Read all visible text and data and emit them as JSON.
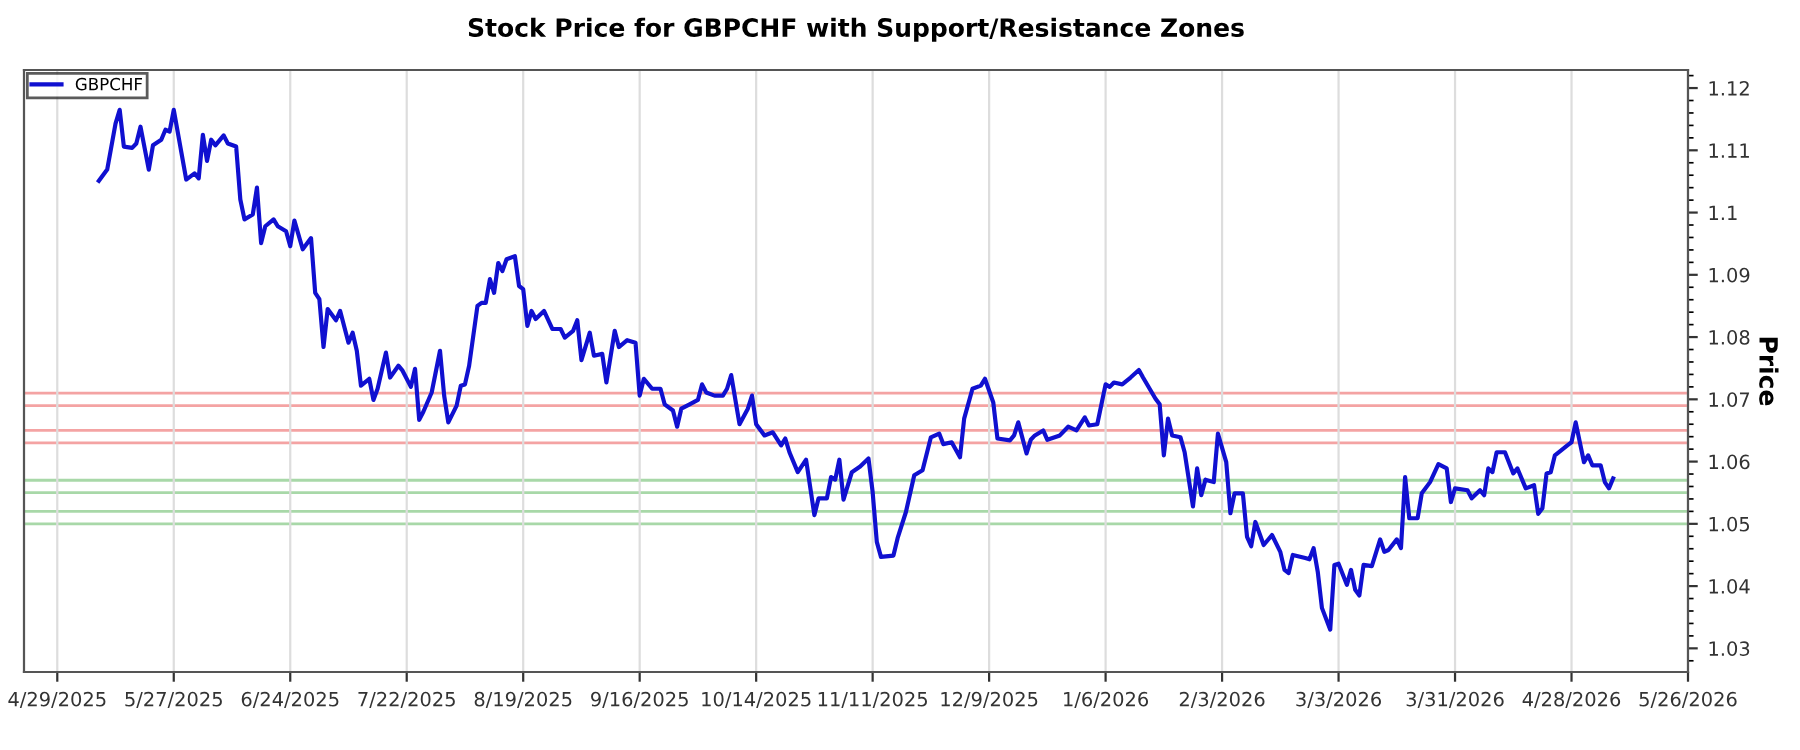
{
  "chart_data": {
    "type": "line",
    "title": "Stock Price for GBPCHF with Support/Resistance Zones",
    "ylabel": "Price",
    "x": [
      "2025-05-09",
      "2025-05-11",
      "2025-05-13",
      "2025-05-14",
      "2025-05-15",
      "2025-05-17",
      "2025-05-18",
      "2025-05-19",
      "2025-05-21",
      "2025-05-22",
      "2025-05-24",
      "2025-05-25",
      "2025-05-26",
      "2025-05-27",
      "2025-05-30",
      "2025-06-01",
      "2025-06-02",
      "2025-06-03",
      "2025-06-04",
      "2025-06-05",
      "2025-06-06",
      "2025-06-08",
      "2025-06-09",
      "2025-06-11",
      "2025-06-12",
      "2025-06-13",
      "2025-06-15",
      "2025-06-16",
      "2025-06-17",
      "2025-06-18",
      "2025-06-20",
      "2025-06-21",
      "2025-06-23",
      "2025-06-24",
      "2025-06-25",
      "2025-06-27",
      "2025-06-29",
      "2025-06-30",
      "2025-07-01",
      "2025-07-02",
      "2025-07-03",
      "2025-07-05",
      "2025-07-06",
      "2025-07-08",
      "2025-07-09",
      "2025-07-10",
      "2025-07-11",
      "2025-07-13",
      "2025-07-14",
      "2025-07-15",
      "2025-07-17",
      "2025-07-18",
      "2025-07-20",
      "2025-07-21",
      "2025-07-23",
      "2025-07-24",
      "2025-07-25",
      "2025-07-26",
      "2025-07-28",
      "2025-07-30",
      "2025-07-31",
      "2025-08-01",
      "2025-08-03",
      "2025-08-04",
      "2025-08-05",
      "2025-08-06",
      "2025-08-08",
      "2025-08-09",
      "2025-08-10",
      "2025-08-11",
      "2025-08-12",
      "2025-08-13",
      "2025-08-14",
      "2025-08-15",
      "2025-08-17",
      "2025-08-18",
      "2025-08-19",
      "2025-08-20",
      "2025-08-21",
      "2025-08-22",
      "2025-08-24",
      "2025-08-26",
      "2025-08-28",
      "2025-08-29",
      "2025-08-31",
      "2025-09-01",
      "2025-09-02",
      "2025-09-04",
      "2025-09-05",
      "2025-09-07",
      "2025-09-08",
      "2025-09-10",
      "2025-09-11",
      "2025-09-13",
      "2025-09-15",
      "2025-09-16",
      "2025-09-17",
      "2025-09-19",
      "2025-09-21",
      "2025-09-22",
      "2025-09-24",
      "2025-09-25",
      "2025-09-26",
      "2025-09-28",
      "2025-09-30",
      "2025-10-01",
      "2025-10-02",
      "2025-10-04",
      "2025-10-06",
      "2025-10-07",
      "2025-10-08",
      "2025-10-10",
      "2025-10-12",
      "2025-10-13",
      "2025-10-14",
      "2025-10-16",
      "2025-10-18",
      "2025-10-20",
      "2025-10-21",
      "2025-10-22",
      "2025-10-24",
      "2025-10-26",
      "2025-10-28",
      "2025-10-29",
      "2025-10-31",
      "2025-11-01",
      "2025-11-02",
      "2025-11-03",
      "2025-11-04",
      "2025-11-06",
      "2025-11-08",
      "2025-11-10",
      "2025-11-11",
      "2025-11-12",
      "2025-11-13",
      "2025-11-16",
      "2025-11-17",
      "2025-11-19",
      "2025-11-21",
      "2025-11-23",
      "2025-11-25",
      "2025-11-27",
      "2025-11-28",
      "2025-11-30",
      "2025-12-02",
      "2025-12-03",
      "2025-12-05",
      "2025-12-07",
      "2025-12-08",
      "2025-12-10",
      "2025-12-11",
      "2025-12-14",
      "2025-12-15",
      "2025-12-16",
      "2025-12-18",
      "2025-12-19",
      "2025-12-20",
      "2025-12-22",
      "2025-12-23",
      "2025-12-26",
      "2025-12-28",
      "2025-12-30",
      "2026-01-01",
      "2026-01-02",
      "2026-01-04",
      "2026-01-06",
      "2026-01-07",
      "2026-01-08",
      "2026-01-10",
      "2026-01-12",
      "2026-01-14",
      "2026-01-15",
      "2026-01-18",
      "2026-01-19",
      "2026-01-20",
      "2026-01-21",
      "2026-01-22",
      "2026-01-24",
      "2026-01-25",
      "2026-01-27",
      "2026-01-28",
      "2026-01-29",
      "2026-01-30",
      "2026-02-01",
      "2026-02-02",
      "2026-02-04",
      "2026-02-05",
      "2026-02-06",
      "2026-02-08",
      "2026-02-09",
      "2026-02-10",
      "2026-02-11",
      "2026-02-13",
      "2026-02-15",
      "2026-02-17",
      "2026-02-18",
      "2026-02-19",
      "2026-02-20",
      "2026-02-23",
      "2026-02-24",
      "2026-02-25",
      "2026-02-26",
      "2026-02-27",
      "2026-03-01",
      "2026-03-02",
      "2026-03-03",
      "2026-03-05",
      "2026-03-06",
      "2026-03-07",
      "2026-03-08",
      "2026-03-09",
      "2026-03-11",
      "2026-03-13",
      "2026-03-14",
      "2026-03-15",
      "2026-03-17",
      "2026-03-18",
      "2026-03-19",
      "2026-03-20",
      "2026-03-22",
      "2026-03-23",
      "2026-03-25",
      "2026-03-27",
      "2026-03-29",
      "2026-03-30",
      "2026-03-31",
      "2026-04-03",
      "2026-04-04",
      "2026-04-06",
      "2026-04-07",
      "2026-04-08",
      "2026-04-09",
      "2026-04-10",
      "2026-04-12",
      "2026-04-14",
      "2026-04-15",
      "2026-04-17",
      "2026-04-19",
      "2026-04-20",
      "2026-04-21",
      "2026-04-22",
      "2026-04-23",
      "2026-04-24",
      "2026-04-27",
      "2026-04-28",
      "2026-04-29",
      "2026-05-01",
      "2026-05-02",
      "2026-05-03",
      "2026-05-05",
      "2026-05-06",
      "2026-05-07",
      "2026-05-08"
    ],
    "series": [
      {
        "name": "GBPCHF",
        "color": "#1010d0",
        "values": [
          1.1051,
          1.1069,
          1.1143,
          1.1165,
          1.1106,
          1.1104,
          1.1111,
          1.1138,
          1.1069,
          1.1108,
          1.1117,
          1.1133,
          1.113,
          1.1165,
          1.1053,
          1.1063,
          1.1055,
          1.1125,
          1.1083,
          1.1117,
          1.1108,
          1.1124,
          1.1111,
          1.1106,
          1.1021,
          1.0989,
          1.0997,
          1.104,
          1.0951,
          1.0978,
          1.0989,
          1.0978,
          1.097,
          1.0946,
          1.0987,
          1.0941,
          1.0959,
          1.0871,
          1.0861,
          1.0784,
          1.0845,
          1.0827,
          1.0842,
          1.0791,
          1.0807,
          1.0778,
          1.0722,
          1.0733,
          1.0699,
          1.0717,
          1.0775,
          1.0735,
          1.0754,
          1.0746,
          1.072,
          1.0749,
          1.0667,
          1.068,
          1.0711,
          1.0778,
          1.0706,
          1.0663,
          1.069,
          1.0722,
          1.0724,
          1.0754,
          1.085,
          1.0855,
          1.0855,
          1.0893,
          1.0871,
          1.0919,
          1.0906,
          1.0925,
          1.093,
          1.0882,
          1.0877,
          1.0818,
          1.0842,
          1.0829,
          1.0842,
          1.0813,
          1.0813,
          1.0799,
          1.081,
          1.0827,
          1.0763,
          1.0807,
          1.077,
          1.0773,
          1.0727,
          1.081,
          1.0784,
          1.0795,
          1.0791,
          1.0706,
          1.0733,
          1.0717,
          1.0717,
          1.0692,
          1.0682,
          1.0656,
          1.0685,
          1.0692,
          1.0699,
          1.0724,
          1.0711,
          1.0706,
          1.0706,
          1.0717,
          1.0739,
          1.066,
          1.0685,
          1.0706,
          1.066,
          1.0642,
          1.0647,
          1.0626,
          1.0637,
          1.0615,
          1.0583,
          1.0603,
          1.0514,
          1.0541,
          1.0541,
          1.0575,
          1.0571,
          1.0603,
          1.0539,
          1.0583,
          1.0592,
          1.0605,
          1.0551,
          1.0471,
          1.0447,
          1.0449,
          1.0477,
          1.0519,
          1.0578,
          1.0586,
          1.0639,
          1.0645,
          1.0628,
          1.0631,
          1.0607,
          1.0669,
          1.0717,
          1.0722,
          1.0733,
          1.0695,
          1.0637,
          1.0634,
          1.0642,
          1.0663,
          1.0613,
          1.0635,
          1.0642,
          1.065,
          1.0635,
          1.0642,
          1.0656,
          1.065,
          1.0671,
          1.0658,
          1.066,
          1.0724,
          1.072,
          1.0727,
          1.0724,
          1.0735,
          1.0747,
          1.0735,
          1.0701,
          1.0692,
          1.061,
          1.0669,
          1.0642,
          1.0639,
          1.0615,
          1.0528,
          1.0589,
          1.0546,
          1.0571,
          1.0567,
          1.0645,
          1.0599,
          1.0517,
          1.0549,
          1.0549,
          1.0479,
          1.0464,
          1.0503,
          1.0466,
          1.0482,
          1.0455,
          1.0426,
          1.0421,
          1.045,
          1.0445,
          1.0443,
          1.0461,
          1.0423,
          1.0365,
          1.033,
          1.0434,
          1.0436,
          1.0402,
          1.0426,
          1.0394,
          1.0385,
          1.0434,
          1.0432,
          1.0475,
          1.0455,
          1.0458,
          1.0475,
          1.0461,
          1.0575,
          1.0509,
          1.0509,
          1.0549,
          1.0567,
          1.0596,
          1.0589,
          1.0535,
          1.0557,
          1.0554,
          1.0541,
          1.0554,
          1.0546,
          1.0589,
          1.0583,
          1.0615,
          1.0615,
          1.0581,
          1.0589,
          1.0557,
          1.0562,
          1.0516,
          1.0525,
          1.0581,
          1.0583,
          1.061,
          1.0626,
          1.0631,
          1.0663,
          1.0599,
          1.061,
          1.0594,
          1.0594,
          1.0567,
          1.0557,
          1.0573
        ]
      }
    ],
    "ref_lines": [
      {
        "axis": "y",
        "value": 1.071,
        "color": "#f4a3a3"
      },
      {
        "axis": "y",
        "value": 1.069,
        "color": "#f4a3a3"
      },
      {
        "axis": "y",
        "value": 1.065,
        "color": "#f4a3a3"
      },
      {
        "axis": "y",
        "value": 1.063,
        "color": "#f4a3a3"
      },
      {
        "axis": "y",
        "value": 1.057,
        "color": "#a8d8a8"
      },
      {
        "axis": "y",
        "value": 1.055,
        "color": "#a8d8a8"
      },
      {
        "axis": "y",
        "value": 1.052,
        "color": "#a8d8a8"
      },
      {
        "axis": "y",
        "value": 1.05,
        "color": "#a8d8a8"
      }
    ],
    "xlim": [
      "2025-04-21",
      "2026-05-26"
    ],
    "xticks": [
      {
        "value": "2025-04-29",
        "label": "4/29/2025"
      },
      {
        "value": "2025-05-27",
        "label": "5/27/2025"
      },
      {
        "value": "2025-06-24",
        "label": "6/24/2025"
      },
      {
        "value": "2025-07-22",
        "label": "7/22/2025"
      },
      {
        "value": "2025-08-19",
        "label": "8/19/2025"
      },
      {
        "value": "2025-09-16",
        "label": "9/16/2025"
      },
      {
        "value": "2025-10-14",
        "label": "10/14/2025"
      },
      {
        "value": "2025-11-11",
        "label": "11/11/2025"
      },
      {
        "value": "2025-12-09",
        "label": "12/9/2025"
      },
      {
        "value": "2026-01-06",
        "label": "1/6/2026"
      },
      {
        "value": "2026-02-03",
        "label": "2/3/2026"
      },
      {
        "value": "2026-03-03",
        "label": "3/3/2026"
      },
      {
        "value": "2026-03-31",
        "label": "3/31/2026"
      },
      {
        "value": "2026-04-28",
        "label": "4/28/2026"
      },
      {
        "value": "2026-05-26",
        "label": "5/26/2026"
      }
    ],
    "ylim": [
      1.0262,
      1.1229
    ],
    "yticks": [
      1.03,
      1.04,
      1.05,
      1.06,
      1.07,
      1.08,
      1.09,
      1.1,
      1.11,
      1.12
    ],
    "grid": "x",
    "legend": "top left",
    "marker": "none",
    "line_style": "solid"
  }
}
